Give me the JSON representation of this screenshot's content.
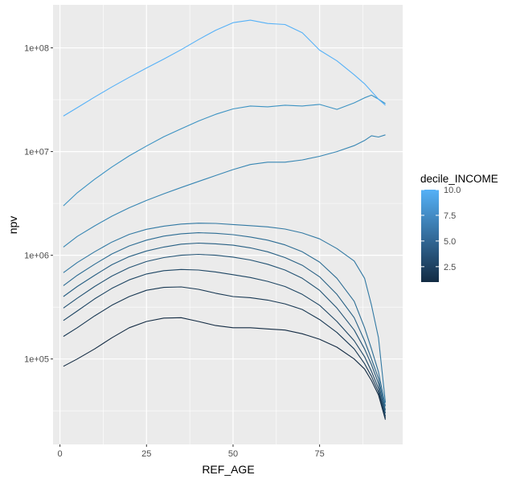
{
  "chart_data": {
    "type": "line",
    "xlabel": "REF_AGE",
    "ylabel": "npv",
    "xlim": [
      -2,
      99
    ],
    "ylim": [
      15000,
      260000000
    ],
    "y_scale": "log10",
    "x_ticks": [
      0,
      25,
      50,
      75
    ],
    "x_tick_labels": [
      "0",
      "25",
      "50",
      "75"
    ],
    "y_ticks": [
      100000,
      1000000,
      10000000,
      100000000
    ],
    "y_tick_labels": [
      "1e+05",
      "1e+06",
      "1e+07",
      "1e+08"
    ],
    "grid": true,
    "legend_position": "right",
    "legend": {
      "title": "decile_INCOME",
      "type": "colorbar",
      "range": [
        1,
        10
      ],
      "breaks": [
        2.5,
        5.0,
        7.5,
        10.0
      ],
      "labels": [
        "2.5",
        "5.0",
        "7.5",
        "10.0"
      ],
      "color_low": "#132B43",
      "color_high": "#56B1F7"
    },
    "series": [
      {
        "decile": 1,
        "color": "#132B43",
        "x": [
          1,
          5,
          10,
          15,
          20,
          25,
          30,
          35,
          40,
          45,
          50,
          55,
          60,
          65,
          70,
          75,
          80,
          85,
          88,
          90,
          92,
          94
        ],
        "y": [
          85000,
          100000,
          125000,
          160000,
          200000,
          230000,
          248000,
          250000,
          230000,
          210000,
          200000,
          200000,
          195000,
          190000,
          175000,
          155000,
          130000,
          100000,
          80000,
          62000,
          45000,
          26000
        ]
      },
      {
        "decile": 2,
        "color": "#183853",
        "x": [
          1,
          5,
          10,
          15,
          20,
          25,
          30,
          35,
          40,
          45,
          50,
          55,
          60,
          65,
          70,
          75,
          80,
          85,
          88,
          90,
          92,
          94
        ],
        "y": [
          165000,
          200000,
          260000,
          330000,
          400000,
          460000,
          490000,
          495000,
          470000,
          430000,
          400000,
          390000,
          370000,
          340000,
          300000,
          240000,
          180000,
          125000,
          90000,
          68000,
          48000,
          27000
        ]
      },
      {
        "decile": 3,
        "color": "#1D4563",
        "x": [
          1,
          5,
          10,
          15,
          20,
          25,
          30,
          35,
          40,
          45,
          50,
          55,
          60,
          65,
          70,
          75,
          80,
          85,
          88,
          90,
          92,
          94
        ],
        "y": [
          235000,
          290000,
          380000,
          480000,
          580000,
          660000,
          710000,
          730000,
          720000,
          690000,
          650000,
          610000,
          560000,
          500000,
          420000,
          330000,
          230000,
          150000,
          105000,
          76000,
          52000,
          28000
        ]
      },
      {
        "decile": 4,
        "color": "#225273",
        "x": [
          1,
          5,
          10,
          15,
          20,
          25,
          30,
          35,
          40,
          45,
          50,
          55,
          60,
          65,
          70,
          75,
          80,
          85,
          88,
          90,
          92,
          94
        ],
        "y": [
          310000,
          385000,
          500000,
          630000,
          760000,
          870000,
          950000,
          1000000,
          1020000,
          1000000,
          960000,
          900000,
          820000,
          720000,
          600000,
          460000,
          310000,
          190000,
          125000,
          88000,
          58000,
          30000
        ]
      },
      {
        "decile": 5,
        "color": "#275F83",
        "x": [
          1,
          5,
          10,
          15,
          20,
          25,
          30,
          35,
          40,
          45,
          50,
          55,
          60,
          65,
          70,
          75,
          80,
          85,
          88,
          90,
          92,
          94
        ],
        "y": [
          400000,
          500000,
          640000,
          810000,
          970000,
          1100000,
          1200000,
          1280000,
          1310000,
          1290000,
          1250000,
          1180000,
          1080000,
          950000,
          800000,
          620000,
          420000,
          250000,
          150000,
          100000,
          65000,
          32000
        ]
      },
      {
        "decile": 6,
        "color": "#2C6C93",
        "x": [
          1,
          5,
          10,
          15,
          20,
          25,
          30,
          35,
          40,
          45,
          50,
          55,
          60,
          65,
          70,
          75,
          80,
          85,
          88,
          90,
          92,
          94
        ],
        "y": [
          510000,
          640000,
          820000,
          1030000,
          1230000,
          1400000,
          1530000,
          1610000,
          1650000,
          1630000,
          1580000,
          1500000,
          1400000,
          1260000,
          1080000,
          860000,
          600000,
          360000,
          200000,
          125000,
          75000,
          35000
        ]
      },
      {
        "decile": 7,
        "color": "#3279A3",
        "x": [
          1,
          5,
          10,
          15,
          20,
          25,
          30,
          35,
          40,
          45,
          50,
          55,
          60,
          65,
          70,
          75,
          80,
          85,
          88,
          90,
          92,
          94
        ],
        "y": [
          680000,
          850000,
          1080000,
          1340000,
          1590000,
          1780000,
          1910000,
          2000000,
          2040000,
          2030000,
          1980000,
          1930000,
          1880000,
          1790000,
          1640000,
          1440000,
          1160000,
          880000,
          600000,
          330000,
          160000,
          38000
        ]
      },
      {
        "decile": 8,
        "color": "#3786B3",
        "x": [
          1,
          5,
          10,
          15,
          20,
          25,
          30,
          35,
          40,
          45,
          50,
          55,
          60,
          65,
          70,
          75,
          80,
          85,
          88,
          90,
          92,
          94
        ],
        "y": [
          1200000,
          1520000,
          1920000,
          2380000,
          2870000,
          3380000,
          3920000,
          4500000,
          5150000,
          5880000,
          6700000,
          7500000,
          7900000,
          7900000,
          8300000,
          9000000,
          10000000,
          11400000,
          12800000,
          14200000,
          13800000,
          14500000
        ]
      },
      {
        "decile": 9,
        "color": "#3C93C3",
        "x": [
          1,
          5,
          10,
          15,
          20,
          25,
          30,
          35,
          40,
          45,
          50,
          55,
          60,
          65,
          70,
          75,
          80,
          85,
          88,
          90,
          92,
          94
        ],
        "y": [
          3000000,
          4000000,
          5400000,
          7100000,
          9100000,
          11300000,
          13900000,
          16600000,
          19700000,
          22900000,
          25800000,
          27500000,
          27000000,
          28000000,
          27500000,
          28500000,
          25500000,
          29500000,
          33000000,
          35000000,
          32000000,
          29000000
        ]
      },
      {
        "decile": 10,
        "color": "#56B1F7",
        "x": [
          1,
          5,
          10,
          15,
          20,
          25,
          30,
          35,
          40,
          45,
          50,
          55,
          60,
          65,
          70,
          75,
          80,
          85,
          88,
          90,
          92,
          94
        ],
        "y": [
          22000000,
          26500000,
          33500000,
          42000000,
          52000000,
          64000000,
          78000000,
          96000000,
          120000000,
          148000000,
          175000000,
          185000000,
          172000000,
          168000000,
          140000000,
          95000000,
          75000000,
          55000000,
          45000000,
          38000000,
          32000000,
          28000000
        ]
      }
    ]
  }
}
